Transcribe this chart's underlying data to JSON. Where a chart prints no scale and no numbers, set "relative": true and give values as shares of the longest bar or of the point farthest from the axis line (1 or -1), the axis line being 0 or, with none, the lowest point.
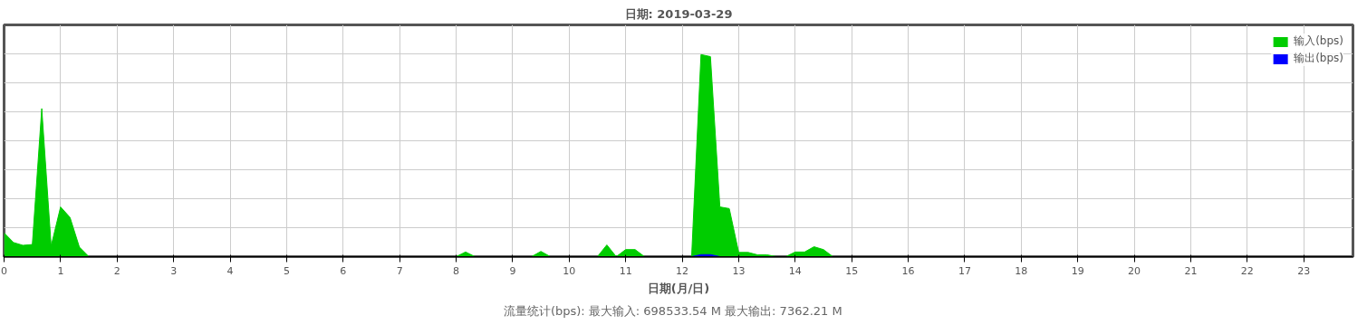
{
  "chart_data": {
    "type": "area",
    "title": "日期: 2019-03-29",
    "xlabel": "日期(月/日)",
    "relative": true,
    "x": [
      0,
      0.167,
      0.333,
      0.5,
      0.667,
      0.833,
      1.0,
      1.167,
      1.333,
      1.5,
      8.0,
      8.167,
      8.333,
      9.333,
      9.5,
      9.667,
      10.5,
      10.667,
      10.833,
      11.0,
      11.167,
      11.333,
      12.167,
      12.333,
      12.5,
      12.667,
      12.833,
      13.0,
      13.167,
      13.333,
      13.5,
      13.667,
      13.833,
      14.0,
      14.167,
      14.333,
      14.5,
      14.667,
      23.833
    ],
    "series": [
      {
        "name": "输入(bps)",
        "color": "#00cc00",
        "values": [
          0.118,
          0.07,
          0.056,
          0.06,
          0.733,
          0.053,
          0.246,
          0.194,
          0.047,
          0,
          0,
          0.023,
          0,
          0,
          0.026,
          0,
          0,
          0.058,
          0,
          0.035,
          0.035,
          0,
          0,
          1.0,
          0.99,
          0.246,
          0.238,
          0.021,
          0.021,
          0.009,
          0.009,
          0,
          0,
          0.023,
          0.023,
          0.049,
          0.035,
          0,
          0
        ]
      },
      {
        "name": "输出(bps)",
        "color": "#0000ff",
        "values": [
          0,
          0,
          0,
          0,
          0,
          0,
          0,
          0,
          0,
          0,
          0,
          0,
          0,
          0,
          0,
          0,
          0,
          0,
          0,
          0,
          0,
          0,
          0,
          0.01,
          0.01,
          0,
          0,
          0,
          0,
          0,
          0,
          0,
          0,
          0,
          0,
          0,
          0,
          0,
          0
        ]
      }
    ],
    "xlim": [
      0,
      23.87
    ],
    "xticks": [
      0,
      1,
      2,
      3,
      4,
      5,
      6,
      7,
      8,
      9,
      10,
      11,
      12,
      13,
      14,
      15,
      16,
      17,
      18,
      19,
      20,
      21,
      22,
      23
    ],
    "grid": true,
    "legend": "top right",
    "annotations": [
      "流量统计(bps): 最大输入: 698533.54 M    最大输出: 7362.21 M"
    ]
  }
}
